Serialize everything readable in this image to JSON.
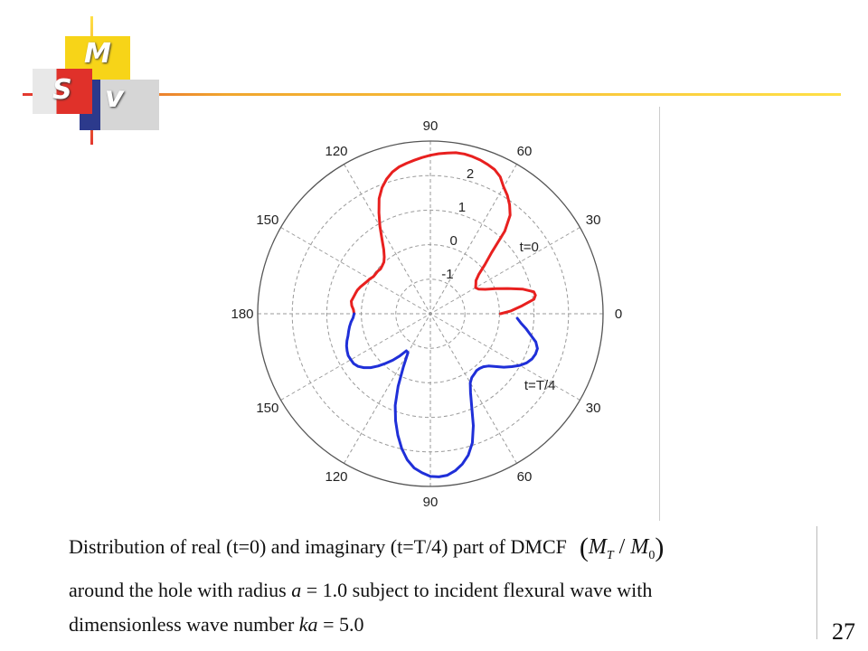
{
  "logo": {
    "letters": {
      "m": "M",
      "s": "S",
      "v": "V"
    },
    "colors": {
      "yellow": "#f7d418",
      "red": "#e0312a",
      "blue": "#2c3a8c",
      "gray": "#cfcfcf"
    }
  },
  "chart_data": {
    "type": "polar",
    "theta_ticks_upper": [
      {
        "angle": 0,
        "label": "0"
      },
      {
        "angle": 30,
        "label": "30"
      },
      {
        "angle": 60,
        "label": "60"
      },
      {
        "angle": 90,
        "label": "90"
      },
      {
        "angle": 120,
        "label": "120"
      },
      {
        "angle": 150,
        "label": "150"
      },
      {
        "angle": 180,
        "label": "180"
      }
    ],
    "theta_ticks_lower": [
      {
        "angle": 210,
        "label": "150"
      },
      {
        "angle": 240,
        "label": "120"
      },
      {
        "angle": 270,
        "label": "90"
      },
      {
        "angle": 300,
        "label": "60"
      },
      {
        "angle": 330,
        "label": "30"
      }
    ],
    "r_ticks": [
      {
        "value": -1,
        "label": "-1"
      },
      {
        "value": 0,
        "label": "0"
      },
      {
        "value": 1,
        "label": "1"
      },
      {
        "value": 2,
        "label": "2"
      }
    ],
    "r_range": [
      -2,
      3
    ],
    "grid": true,
    "series": [
      {
        "name": "t=0",
        "color": "#e8201f",
        "points": [
          [
            0,
            0.03
          ],
          [
            2,
            0.33
          ],
          [
            5,
            0.67
          ],
          [
            8,
            1.03
          ],
          [
            10,
            1.09
          ],
          [
            12,
            1.06
          ],
          [
            15,
            0.76
          ],
          [
            18,
            0.36
          ],
          [
            21,
            0.03
          ],
          [
            24,
            -0.26
          ],
          [
            27,
            -0.43
          ],
          [
            30,
            -0.49
          ],
          [
            33,
            -0.43
          ],
          [
            36,
            -0.37
          ],
          [
            39,
            -0.2
          ],
          [
            42,
            0.12
          ],
          [
            45,
            0.51
          ],
          [
            48,
            1.22
          ],
          [
            51,
            1.67
          ],
          [
            54,
            1.9
          ],
          [
            57,
            2.09
          ],
          [
            60,
            2.24
          ],
          [
            63,
            2.45
          ],
          [
            66,
            2.57
          ],
          [
            69,
            2.63
          ],
          [
            72,
            2.68
          ],
          [
            75,
            2.71
          ],
          [
            78,
            2.73
          ],
          [
            81,
            2.72
          ],
          [
            84,
            2.68
          ],
          [
            87,
            2.64
          ],
          [
            90,
            2.59
          ],
          [
            93,
            2.53
          ],
          [
            96,
            2.47
          ],
          [
            99,
            2.41
          ],
          [
            102,
            2.35
          ],
          [
            105,
            2.25
          ],
          [
            108,
            2.1
          ],
          [
            111,
            1.91
          ],
          [
            114,
            1.65
          ],
          [
            117,
            1.28
          ],
          [
            120,
            0.92
          ],
          [
            123,
            0.57
          ],
          [
            126,
            0.3
          ],
          [
            129,
            0.12
          ],
          [
            132,
            0.01
          ],
          [
            135,
            -0.03
          ],
          [
            138,
            -0.06
          ],
          [
            141,
            -0.04
          ],
          [
            144,
            -0.04
          ],
          [
            147,
            -0.03
          ],
          [
            150,
            0.02
          ],
          [
            153,
            0.06
          ],
          [
            156,
            0.11
          ],
          [
            159,
            0.17
          ],
          [
            162,
            0.22
          ],
          [
            165,
            0.25
          ],
          [
            168,
            0.28
          ],
          [
            171,
            0.32
          ],
          [
            174,
            0.29
          ],
          [
            177,
            0.23
          ],
          [
            180,
            0.21
          ]
        ]
      },
      {
        "name": "t=T/4",
        "color": "#1f2fd8",
        "points": [
          [
            180,
            0.21
          ],
          [
            183,
            0.24
          ],
          [
            186,
            0.31
          ],
          [
            189,
            0.37
          ],
          [
            192,
            0.42
          ],
          [
            195,
            0.47
          ],
          [
            198,
            0.54
          ],
          [
            201,
            0.6
          ],
          [
            204,
            0.64
          ],
          [
            207,
            0.67
          ],
          [
            210,
            0.66
          ],
          [
            213,
            0.65
          ],
          [
            216,
            0.59
          ],
          [
            219,
            0.48
          ],
          [
            222,
            0.33
          ],
          [
            225,
            0.14
          ],
          [
            228,
            -0.07
          ],
          [
            231,
            -0.27
          ],
          [
            234,
            -0.49
          ],
          [
            237,
            -0.72
          ],
          [
            240,
            -0.7
          ],
          [
            243,
            -0.28
          ],
          [
            246,
            0.3
          ],
          [
            249,
            0.84
          ],
          [
            252,
            1.26
          ],
          [
            255,
            1.64
          ],
          [
            258,
            1.99
          ],
          [
            261,
            2.28
          ],
          [
            264,
            2.49
          ],
          [
            267,
            2.61
          ],
          [
            270,
            2.71
          ],
          [
            273,
            2.73
          ],
          [
            276,
            2.7
          ],
          [
            279,
            2.6
          ],
          [
            282,
            2.45
          ],
          [
            285,
            2.24
          ],
          [
            288,
            1.93
          ],
          [
            291,
            1.47
          ],
          [
            294,
            0.94
          ],
          [
            297,
            0.56
          ],
          [
            300,
            0.31
          ],
          [
            303,
            0.2
          ],
          [
            306,
            0.16
          ],
          [
            309,
            0.12
          ],
          [
            312,
            0.13
          ],
          [
            315,
            0.17
          ],
          [
            318,
            0.26
          ],
          [
            321,
            0.43
          ],
          [
            324,
            0.63
          ],
          [
            327,
            0.81
          ],
          [
            330,
            0.99
          ],
          [
            333,
            1.13
          ],
          [
            336,
            1.22
          ],
          [
            339,
            1.26
          ],
          [
            342,
            1.26
          ],
          [
            345,
            1.16
          ],
          [
            348,
            0.97
          ],
          [
            351,
            0.81
          ],
          [
            354,
            0.64
          ],
          [
            357,
            0.52
          ]
        ]
      }
    ],
    "annotations": [
      {
        "text": "t=0",
        "r": 1.15,
        "theta": 35
      },
      {
        "text": "t=T/4",
        "r": 1.5,
        "theta": 321
      }
    ]
  },
  "caption": {
    "line1": "Distribution of real (t=0) and imaginary (t=T/4) part of DMCF",
    "formula": {
      "open": "(",
      "m1": "M",
      "sub1": "T",
      "slash": " / ",
      "m2": "M",
      "sub2": "0",
      "close": ")"
    },
    "line2_a": "around the hole with radius ",
    "line2_var": "a",
    "line2_b": " = 1.0 subject to incident flexural wave with",
    "line3_a": "dimensionless wave number ",
    "line3_var": "ka",
    "line3_b": " = 5.0"
  },
  "slide_number": "27"
}
